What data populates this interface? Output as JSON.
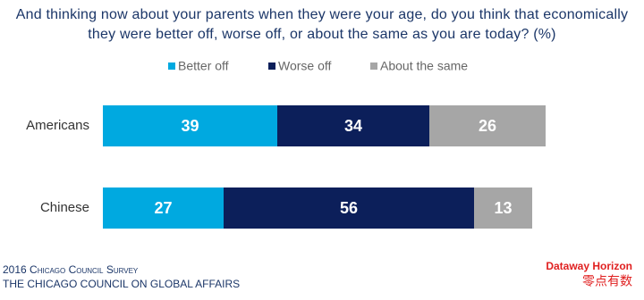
{
  "chart_data": {
    "type": "stacked-bar-horizontal",
    "title": "And thinking now about your parents when they were your age, do you think that economically they were better off, worse off, or about the same as you are today? (%)",
    "categories": [
      "Americans",
      "Chinese"
    ],
    "series": [
      {
        "name": "Better off",
        "color": "#00a9e0",
        "values": [
          39,
          27
        ]
      },
      {
        "name": "Worse off",
        "color": "#0c1f5a",
        "values": [
          34,
          56
        ]
      },
      {
        "name": "About the same",
        "color": "#a6a6a6",
        "values": [
          26,
          13
        ]
      }
    ],
    "legend": "top"
  },
  "footer": {
    "source": "2016 Chicago Council Survey",
    "publisher": "THE CHICAGO COUNCIL ON GLOBAL AFFAIRS",
    "brand": "Dataway Horizon",
    "brand_cn": "零点有数"
  }
}
